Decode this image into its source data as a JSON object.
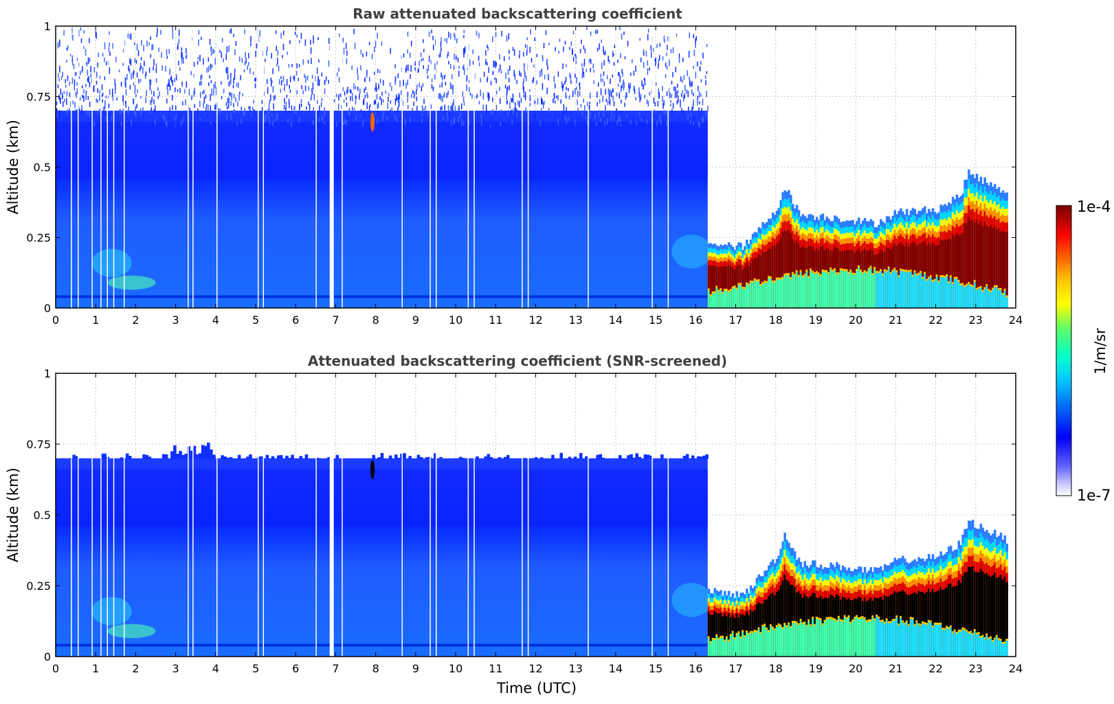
{
  "chart_data": [
    {
      "type": "heatmap",
      "title": "Raw attenuated backscattering coefficient",
      "xlabel": "",
      "ylabel": "Altitude (km)",
      "xlim": [
        0,
        24
      ],
      "ylim": [
        0,
        1
      ],
      "x_ticks": [
        "0",
        "1",
        "2",
        "3",
        "4",
        "5",
        "6",
        "7",
        "8",
        "9",
        "10",
        "11",
        "12",
        "13",
        "14",
        "15",
        "16",
        "17",
        "18",
        "19",
        "20",
        "21",
        "22",
        "23",
        "24"
      ],
      "y_ticks": [
        "0",
        "0.25",
        "0.5",
        "0.75",
        "1"
      ],
      "grid": true,
      "regions": [
        {
          "x": [
            0,
            16.3
          ],
          "y": [
            0,
            0.7
          ],
          "level": "low-mid (blue)"
        },
        {
          "x": [
            0,
            16.3
          ],
          "y": [
            0.7,
            1.0
          ],
          "level": "noise (sparse blue)"
        },
        {
          "x": [
            16.3,
            23.8
          ],
          "y": [
            0,
            0.5
          ],
          "level": "high (boundary layer, red)"
        }
      ],
      "boundary_layer_top_km": {
        "x": [
          16.3,
          16.6,
          17.2,
          18.0,
          18.2,
          18.6,
          19.5,
          20.5,
          21.0,
          22.0,
          22.6,
          22.8,
          23.2,
          23.8
        ],
        "y": [
          0.24,
          0.22,
          0.22,
          0.35,
          0.43,
          0.33,
          0.32,
          0.3,
          0.34,
          0.35,
          0.4,
          0.48,
          0.45,
          0.41
        ]
      }
    },
    {
      "type": "heatmap",
      "title": "Attenuated backscattering coefficient (SNR-screened)",
      "xlabel": "Time (UTC)",
      "ylabel": "Altitude (km)",
      "xlim": [
        0,
        24
      ],
      "ylim": [
        0,
        1
      ],
      "x_ticks": [
        "0",
        "1",
        "2",
        "3",
        "4",
        "5",
        "6",
        "7",
        "8",
        "9",
        "10",
        "11",
        "12",
        "13",
        "14",
        "15",
        "16",
        "17",
        "18",
        "19",
        "20",
        "21",
        "22",
        "23",
        "24"
      ],
      "y_ticks": [
        "0",
        "0.25",
        "0.5",
        "0.75",
        "1"
      ],
      "grid": true,
      "regions": [
        {
          "x": [
            0,
            16.3
          ],
          "y": [
            0,
            0.7
          ],
          "level": "low-mid (blue)"
        },
        {
          "x": [
            16.3,
            23.8
          ],
          "y": [
            0,
            0.48
          ],
          "level": "high, saturated core (black)"
        }
      ]
    }
  ],
  "colorbar": {
    "max_label": "1e-4",
    "min_label": "1e-7",
    "unit": "1/m/sr",
    "scale": "log",
    "colors": [
      "#ffffff",
      "#c8c8ff",
      "#6464ff",
      "#0000ff",
      "#0064ff",
      "#00c8ff",
      "#00ffc8",
      "#64ff64",
      "#ffff00",
      "#ffc800",
      "#ff6400",
      "#ff0000",
      "#b40000",
      "#800000"
    ]
  }
}
